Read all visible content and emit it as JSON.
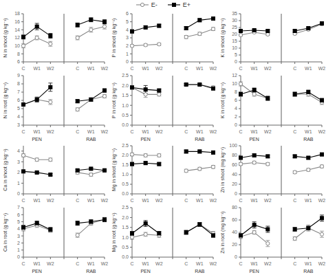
{
  "chart_data": [
    {
      "type": "line",
      "ylabel": "N in shoot (g kg⁻¹)",
      "categories": [
        "C",
        "W1",
        "W2",
        null,
        "C",
        "W1",
        "W2"
      ],
      "ylim": [
        6.0,
        18.0
      ],
      "yticks": [
        6.0,
        8.0,
        10.0,
        12.0,
        14.0,
        16.0,
        18.0
      ],
      "grid": false,
      "series": [
        {
          "name": "E-",
          "color": "#888888",
          "marker": "circle-open",
          "values": [
            10.0,
            12.0,
            10.5,
            null,
            12.0,
            14.0,
            14.8
          ],
          "errors": [
            0.5,
            0.5,
            0.6,
            null,
            0.5,
            0.6,
            0.6
          ]
        },
        {
          "name": "E+",
          "color": "#000000",
          "marker": "square",
          "values": [
            12.2,
            14.8,
            12.5,
            null,
            15.2,
            16.5,
            16.0
          ],
          "errors": [
            0.5,
            0.8,
            0.6,
            null,
            0.5,
            0.5,
            0.5
          ]
        }
      ]
    },
    {
      "type": "line",
      "ylabel": "N in root (g kg⁻¹)",
      "categories": [
        "C",
        "W1",
        "W2",
        null,
        "C",
        "W1",
        "W2"
      ],
      "annotations": [
        "PEN",
        "RAB"
      ],
      "ylim": [
        3.0,
        9.0
      ],
      "yticks": [
        3.0,
        4.0,
        5.0,
        6.0,
        7.0,
        8.0,
        9.0
      ],
      "grid": false,
      "series": [
        {
          "name": "E-",
          "color": "#888888",
          "marker": "circle-open",
          "values": [
            5.5,
            6.1,
            5.8,
            null,
            4.9,
            6.1,
            6.5
          ],
          "errors": [
            0.2,
            0.2,
            0.3,
            null,
            0.2,
            0.2,
            0.2
          ]
        },
        {
          "name": "E+",
          "color": "#000000",
          "marker": "square",
          "values": [
            5.5,
            6.1,
            7.6,
            null,
            5.9,
            6.1,
            7.2
          ],
          "errors": [
            0.2,
            0.3,
            0.5,
            null,
            0.2,
            0.2,
            0.2
          ]
        }
      ]
    },
    {
      "type": "line",
      "ylabel": "P in shoot (g kg⁻¹)",
      "categories": [
        "C",
        "W1",
        "W2",
        null,
        "C",
        "W1",
        "W2"
      ],
      "ylim": [
        0.0,
        6.0
      ],
      "yticks": [
        0.0,
        1.0,
        2.0,
        3.0,
        4.0,
        5.0,
        6.0
      ],
      "grid": false,
      "series": [
        {
          "name": "E-",
          "color": "#888888",
          "marker": "circle-open",
          "values": [
            2.0,
            2.1,
            2.2,
            null,
            3.1,
            3.5,
            4.1
          ],
          "errors": [
            0.15,
            0.15,
            0.15,
            null,
            0.2,
            0.2,
            0.2
          ]
        },
        {
          "name": "E+",
          "color": "#000000",
          "marker": "square",
          "values": [
            3.8,
            4.3,
            4.5,
            null,
            4.2,
            5.2,
            5.4
          ],
          "errors": [
            0.2,
            0.2,
            0.2,
            null,
            0.2,
            0.2,
            0.2
          ]
        }
      ]
    },
    {
      "type": "line",
      "ylabel": "P in root (g kg⁻¹)",
      "categories": [
        "C",
        "W1",
        "W2",
        null,
        "C",
        "W1",
        "W2"
      ],
      "annotations": [
        "PEN",
        "RAB"
      ],
      "ylim": [
        0.0,
        2.5
      ],
      "yticks": [
        {
          "value": 0.0,
          "label": "0.0"
        },
        {
          "value": 0.5,
          "label": "0.5"
        },
        {
          "value": 1.0,
          "label": "1.0"
        },
        {
          "value": 1.5,
          "label": "1.5"
        },
        {
          "value": 2.0,
          "label": "2.0"
        },
        {
          "value": 2.5,
          "label": "2.5"
        }
      ],
      "grid": false,
      "series": [
        {
          "name": "E-",
          "color": "#888888",
          "marker": "circle-open",
          "values": [
            1.9,
            1.55,
            1.55,
            null,
            2.05,
            2.05,
            1.9
          ],
          "errors": [
            0.08,
            0.15,
            0.08,
            null,
            0.05,
            0.05,
            0.08
          ]
        },
        {
          "name": "E+",
          "color": "#000000",
          "marker": "square",
          "values": [
            1.9,
            1.8,
            1.75,
            null,
            2.05,
            2.05,
            1.85
          ],
          "errors": [
            0.08,
            0.2,
            0.08,
            null,
            0.05,
            0.05,
            0.05
          ]
        }
      ]
    },
    {
      "type": "line",
      "ylabel": "K in shoot (g kg⁻¹)",
      "categories": [
        "C",
        "W1",
        "W2",
        null,
        "C",
        "W1",
        "W2"
      ],
      "ylim": [
        0.0,
        35.0
      ],
      "yticks": [
        0.0,
        5.0,
        10.0,
        15.0,
        20.0,
        25.0,
        30.0,
        35.0
      ],
      "grid": false,
      "series": [
        {
          "name": "E-",
          "color": "#888888",
          "marker": "circle-open",
          "values": [
            19.5,
            21.5,
            20.0,
            null,
            20.5,
            23.5,
            27.5
          ],
          "errors": [
            0.8,
            0.8,
            0.8,
            null,
            0.8,
            0.8,
            1.0
          ]
        },
        {
          "name": "E+",
          "color": "#000000",
          "marker": "square",
          "values": [
            22.5,
            23.0,
            22.5,
            null,
            22.5,
            24.5,
            28.0
          ],
          "errors": [
            0.8,
            0.8,
            0.8,
            null,
            0.8,
            0.8,
            0.8
          ]
        }
      ]
    },
    {
      "type": "line",
      "ylabel": "K in root (g kg⁻¹)",
      "categories": [
        "C",
        "W1",
        "W2",
        null,
        "C",
        "W1",
        "W2"
      ],
      "annotations": [
        "PEN",
        "RAB"
      ],
      "ylim": [
        0.0,
        12.0
      ],
      "yticks": [
        0.0,
        2.0,
        4.0,
        6.0,
        8.0,
        10.0,
        12.0
      ],
      "grid": false,
      "series": [
        {
          "name": "E-",
          "color": "#888888",
          "marker": "circle-open",
          "values": [
            10.0,
            7.5,
            6.5,
            null,
            7.5,
            7.5,
            5.5
          ],
          "errors": [
            0.5,
            0.5,
            0.5,
            null,
            0.5,
            0.5,
            0.5
          ]
        },
        {
          "name": "E+",
          "color": "#000000",
          "marker": "square",
          "values": [
            7.5,
            8.5,
            6.5,
            null,
            7.5,
            8.0,
            6.0
          ],
          "errors": [
            0.5,
            0.5,
            0.5,
            null,
            0.5,
            0.5,
            0.5
          ]
        }
      ]
    },
    {
      "type": "line",
      "ylabel": "Ca in shoot (g kg⁻¹)",
      "categories": [
        "C",
        "W1",
        "W2",
        null,
        "C",
        "W1",
        "W2"
      ],
      "ylim": [
        0.0,
        4.5
      ],
      "yticks": [
        0.0,
        1.0,
        2.0,
        3.0,
        4.0
      ],
      "grid": false,
      "series": [
        {
          "name": "E-",
          "color": "#888888",
          "marker": "circle-open",
          "values": [
            3.6,
            3.2,
            3.2,
            null,
            2.0,
            1.8,
            2.2
          ],
          "errors": [
            0.15,
            0.15,
            0.15,
            null,
            0.15,
            0.15,
            0.15
          ]
        },
        {
          "name": "E+",
          "color": "#000000",
          "marker": "square",
          "values": [
            2.1,
            2.0,
            1.8,
            null,
            2.2,
            2.35,
            2.2
          ],
          "errors": [
            0.1,
            0.1,
            0.1,
            null,
            0.1,
            0.1,
            0.1
          ]
        }
      ]
    },
    {
      "type": "line",
      "ylabel": "Ca in root (g kg⁻¹)",
      "categories": [
        "C",
        "W1",
        "W2",
        null,
        "C",
        "W1",
        "W2"
      ],
      "annotations": [
        "PEN",
        "RAB"
      ],
      "ylim": [
        0.0,
        7.0
      ],
      "yticks": [
        0.0,
        1.0,
        2.0,
        3.0,
        4.0,
        5.0,
        6.0,
        7.0
      ],
      "grid": false,
      "series": [
        {
          "name": "E-",
          "color": "#888888",
          "marker": "circle-open",
          "values": [
            4.0,
            4.5,
            3.8,
            null,
            3.1,
            4.8,
            5.3
          ],
          "errors": [
            0.3,
            0.3,
            0.3,
            null,
            0.3,
            0.3,
            0.3
          ]
        },
        {
          "name": "E+",
          "color": "#000000",
          "marker": "square",
          "values": [
            4.2,
            4.8,
            3.9,
            null,
            4.8,
            5.0,
            5.3
          ],
          "errors": [
            0.3,
            0.3,
            0.3,
            null,
            0.3,
            0.3,
            0.3
          ]
        }
      ]
    },
    {
      "type": "line",
      "ylabel": "Mg in shoot (g kg⁻¹)",
      "categories": [
        "C",
        "W1",
        "W2",
        null,
        "C",
        "W1",
        "W2"
      ],
      "ylim": [
        0.0,
        2.5
      ],
      "yticks": [
        {
          "value": 0.0,
          "label": "0.0"
        },
        {
          "value": 0.5,
          "label": "0.5"
        },
        {
          "value": 1.0,
          "label": "1.0"
        },
        {
          "value": 1.5,
          "label": "1.5"
        },
        {
          "value": 2.0,
          "label": "2.0"
        },
        {
          "value": 2.5,
          "label": "2.5"
        }
      ],
      "grid": false,
      "series": [
        {
          "name": "E-",
          "color": "#888888",
          "marker": "circle-open",
          "values": [
            2.05,
            2.0,
            2.0,
            null,
            1.2,
            1.3,
            1.4
          ],
          "errors": [
            0.08,
            0.08,
            0.08,
            null,
            0.08,
            0.08,
            0.08
          ]
        },
        {
          "name": "E+",
          "color": "#000000",
          "marker": "square",
          "values": [
            1.55,
            1.6,
            1.55,
            null,
            2.2,
            2.2,
            2.15
          ],
          "errors": [
            0.08,
            0.08,
            0.08,
            null,
            0.08,
            0.08,
            0.08
          ]
        }
      ]
    },
    {
      "type": "line",
      "ylabel": "Mg in root (g kg⁻¹)",
      "categories": [
        "C",
        "W1",
        "W2",
        null,
        "C",
        "W1",
        "W2"
      ],
      "annotations": [
        "PEN",
        "RAB"
      ],
      "ylim": [
        0.0,
        2.5
      ],
      "yticks": [
        {
          "value": 0.0,
          "label": "0.0"
        },
        {
          "value": 0.5,
          "label": "0.5"
        },
        {
          "value": 1.0,
          "label": "1.0"
        },
        {
          "value": 1.5,
          "label": "1.5"
        },
        {
          "value": 2.0,
          "label": "2.0"
        },
        {
          "value": 2.5,
          "label": "2.5"
        }
      ],
      "grid": false,
      "series": [
        {
          "name": "E-",
          "color": "#888888",
          "marker": "circle-open",
          "values": [
            1.0,
            1.15,
            1.1,
            null,
            1.25,
            1.65,
            1.2
          ],
          "errors": [
            0.1,
            0.1,
            0.1,
            null,
            0.1,
            0.1,
            0.1
          ]
        },
        {
          "name": "E+",
          "color": "#000000",
          "marker": "square",
          "values": [
            1.2,
            1.7,
            1.2,
            null,
            1.25,
            1.65,
            1.1
          ],
          "errors": [
            0.1,
            0.15,
            0.1,
            null,
            0.1,
            0.1,
            0.1
          ]
        }
      ]
    },
    {
      "type": "line",
      "ylabel": "Zn in shoot (mg kg⁻¹)",
      "categories": [
        "C",
        "W1",
        "W2",
        null,
        "C",
        "W1",
        "W2"
      ],
      "ylim": [
        0.0,
        100.0
      ],
      "yticks": [
        0.0,
        20.0,
        40.0,
        60.0,
        80.0,
        100.0
      ],
      "grid": false,
      "series": [
        {
          "name": "E-",
          "color": "#888888",
          "marker": "circle-open",
          "values": [
            62.0,
            65.0,
            62.0,
            null,
            45.0,
            50.0,
            57.0
          ],
          "errors": [
            3.0,
            3.0,
            3.0,
            null,
            3.0,
            3.0,
            3.0
          ]
        },
        {
          "name": "E+",
          "color": "#000000",
          "marker": "square",
          "values": [
            75.0,
            80.0,
            78.0,
            null,
            78.0,
            75.0,
            82.0
          ],
          "errors": [
            3.0,
            3.0,
            3.0,
            null,
            3.0,
            3.0,
            3.0
          ]
        }
      ]
    },
    {
      "type": "line",
      "ylabel": "Zn in root (mg kg⁻¹)",
      "categories": [
        "C",
        "W1",
        "W2",
        null,
        "C",
        "W1",
        "W2"
      ],
      "annotations": [
        "PEN",
        "RAB"
      ],
      "ylim": [
        0.0,
        80.0
      ],
      "yticks": [
        0.0,
        20.0,
        40.0,
        60.0,
        80.0
      ],
      "grid": false,
      "series": [
        {
          "name": "E-",
          "color": "#888888",
          "marker": "circle-open",
          "values": [
            33.0,
            40.0,
            22.0,
            null,
            30.0,
            47.0,
            37.0
          ],
          "errors": [
            3.0,
            3.0,
            5.0,
            null,
            3.0,
            5.0,
            5.0
          ]
        },
        {
          "name": "E+",
          "color": "#000000",
          "marker": "square",
          "values": [
            35.0,
            52.0,
            45.0,
            null,
            45.0,
            47.0,
            63.0
          ],
          "errors": [
            3.0,
            5.0,
            5.0,
            null,
            3.0,
            3.0,
            5.0
          ]
        }
      ]
    }
  ]
}
